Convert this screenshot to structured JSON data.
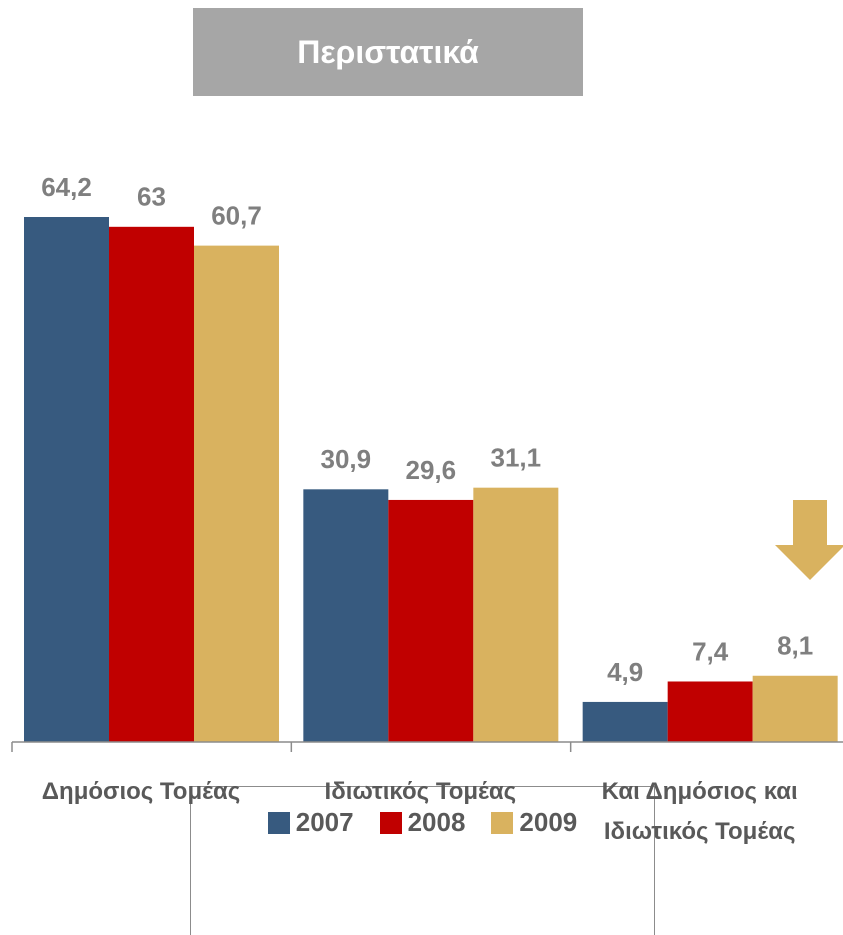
{
  "chart_data": {
    "type": "bar",
    "title": "Περιστατικά",
    "categories": [
      "Δημόσιος Τομέας",
      "Ιδιωτικός Τομέας",
      "Και Δημόσιος και Ιδιωτικός Τομέας"
    ],
    "series": [
      {
        "name": "2007",
        "color": "#375a7f",
        "values": [
          64.2,
          30.9,
          4.9
        ],
        "value_labels": [
          "64,2",
          "30,9",
          "4,9"
        ]
      },
      {
        "name": "2008",
        "color": "#c00000",
        "values": [
          63,
          29.6,
          7.4
        ],
        "value_labels": [
          "63",
          "29,6",
          "7,4"
        ]
      },
      {
        "name": "2009",
        "color": "#d9b25f",
        "values": [
          60.7,
          31.1,
          8.1
        ],
        "value_labels": [
          "60,7",
          "31,1",
          "8,1"
        ]
      }
    ],
    "legend": "bottom"
  }
}
